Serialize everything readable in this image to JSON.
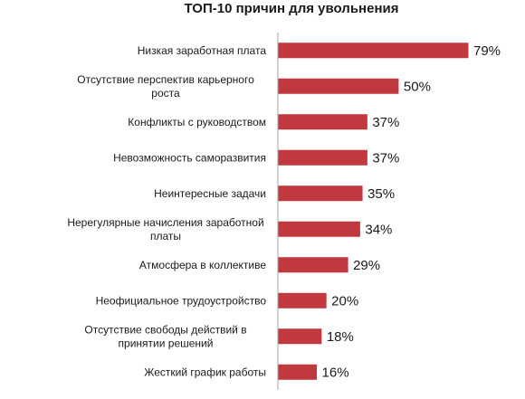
{
  "chart_data": {
    "type": "bar",
    "orientation": "horizontal",
    "title": "ТОП-10 причин для увольнения",
    "categories": [
      [
        "Низкая заработная плата"
      ],
      [
        "Отсутствие перспектив карьерного",
        "роста"
      ],
      [
        "Конфликты с руководством"
      ],
      [
        "Невозможность саморазвития"
      ],
      [
        "Неинтересные задачи"
      ],
      [
        "Нерегулярные начисления заработной",
        "платы"
      ],
      [
        "Атмосфера в коллективе"
      ],
      [
        "Неофициальное трудоустройство"
      ],
      [
        "Отсутствие свободы действий в",
        "принятии решений"
      ],
      [
        "Жесткий график работы"
      ]
    ],
    "values": [
      79,
      50,
      37,
      37,
      35,
      34,
      29,
      20,
      18,
      16
    ],
    "value_labels": [
      "79%",
      "50%",
      "37%",
      "37%",
      "35%",
      "34%",
      "29%",
      "20%",
      "18%",
      "16%"
    ],
    "unit": "%",
    "bar_color": "#c0393f",
    "axis_color": "#a6a6a6",
    "xlabel": "",
    "ylabel": "",
    "grid": false
  }
}
